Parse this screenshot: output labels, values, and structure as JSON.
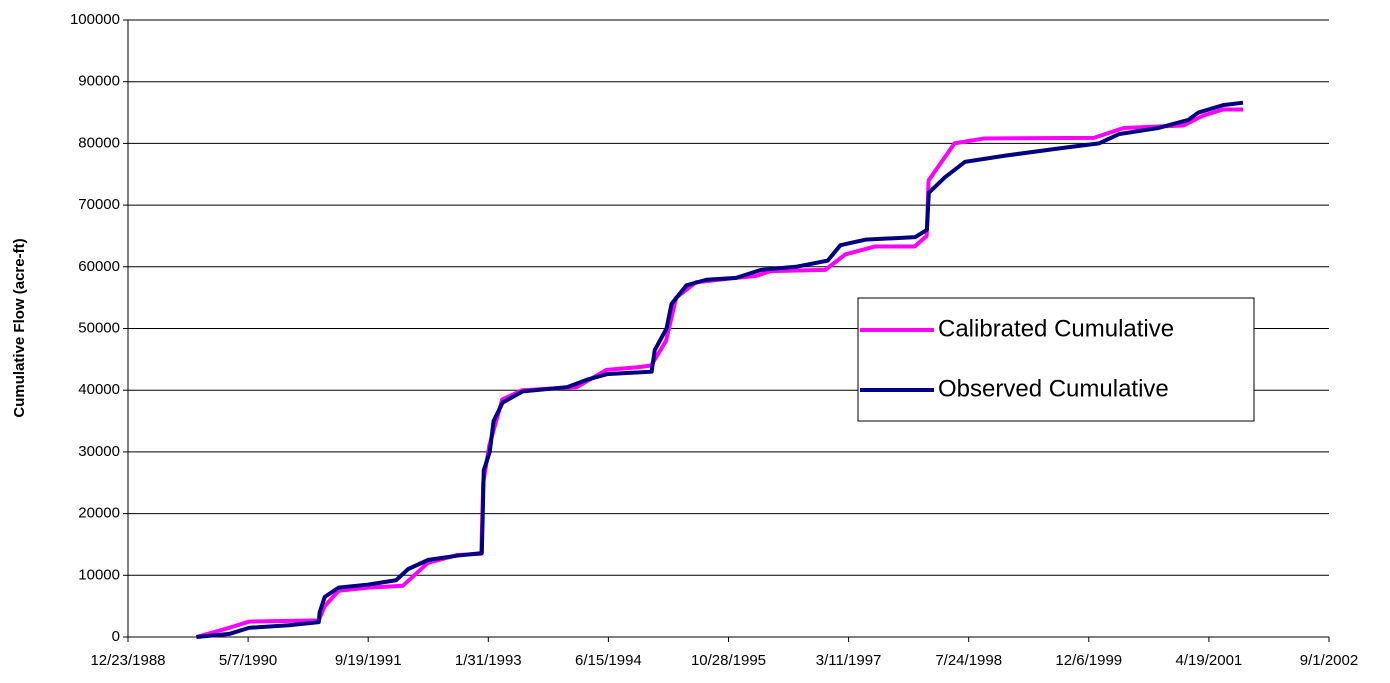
{
  "chart_data": {
    "type": "line",
    "y_label": "Cumulative Flow (acre-ft)",
    "xlim": [
      "12/23/1988",
      "9/1/2002"
    ],
    "xticks": [
      "12/23/1988",
      "5/7/1990",
      "9/19/1991",
      "1/31/1993",
      "6/15/1994",
      "10/28/1995",
      "3/11/1997",
      "7/24/1998",
      "12/6/1999",
      "4/19/2001",
      "9/1/2002"
    ],
    "ylim": [
      0,
      100000
    ],
    "yticks": [
      0,
      10000,
      20000,
      30000,
      40000,
      50000,
      60000,
      70000,
      80000,
      90000,
      100000
    ],
    "grid": true,
    "legend": "right",
    "series": [
      {
        "name": "Calibrated Cumulative",
        "color": "#ff00ff",
        "x": [
          "10/4/1989",
          "2/18/1990",
          "5/12/1990",
          "2/25/1991",
          "3/22/1991",
          "5/19/1991",
          "9/19/1991",
          "2/10/1992",
          "5/24/1992",
          "9/25/1992",
          "1/2/1993",
          "1/10/1993",
          "2/4/1993",
          "3/30/1993",
          "6/21/1993",
          "2/3/1994",
          "6/7/1994",
          "10/10/1994",
          "12/10/1994",
          "2/10/1995",
          "3/24/1995",
          "6/15/1995",
          "11/27/1995",
          "2/18/1996",
          "4/20/1996",
          "12/4/1996",
          "2/25/1997",
          "6/29/1997",
          "12/11/1997",
          "1/30/1998",
          "2/7/1998",
          "5/26/1998",
          "9/27/1998",
          "12/27/1999",
          "4/29/2000",
          "1/3/2001",
          "3/26/2001",
          "6/17/2001",
          "9/8/2001"
        ],
        "values": [
          0,
          1500,
          2500,
          2700,
          5000,
          7500,
          8000,
          8300,
          12000,
          13300,
          13500,
          25000,
          31000,
          38500,
          40000,
          40500,
          43300,
          43700,
          44000,
          48000,
          55000,
          57500,
          58200,
          58500,
          59300,
          59500,
          62000,
          63300,
          63300,
          65000,
          74000,
          80000,
          80800,
          80900,
          82500,
          82900,
          84500,
          85500,
          85500
        ]
      },
      {
        "name": "Observed Cumulative",
        "color": "#000080",
        "x": [
          "10/4/1989",
          "2/18/1990",
          "5/12/1990",
          "10/24/1990",
          "2/25/1991",
          "3/1/1991",
          "3/22/1991",
          "5/19/1991",
          "9/19/1991",
          "1/13/1992",
          "3/3/1992",
          "5/26/1992",
          "9/27/1992",
          "1/4/1993",
          "1/12/1993",
          "2/6/1993",
          "2/22/1993",
          "4/1/1993",
          "6/23/1993",
          "12/26/1993",
          "3/18/1994",
          "6/9/1994",
          "12/12/1994",
          "12/25/1994",
          "2/12/1995",
          "3/5/1995",
          "5/6/1995",
          "7/28/1995",
          "11/29/1995",
          "3/11/1996",
          "8/3/1996",
          "12/14/1996",
          "2/5/1997",
          "5/20/1997",
          "12/13/1997",
          "1/31/1998",
          "2/8/1998",
          "4/16/1998",
          "7/8/1998",
          "12/20/1998",
          "8/25/1999",
          "1/17/2000",
          "4/9/2000",
          "9/21/2000",
          "1/23/2001",
          "3/6/2001",
          "6/17/2001",
          "9/8/2001"
        ],
        "values": [
          0,
          500,
          1500,
          1900,
          2400,
          4000,
          6500,
          8000,
          8500,
          9200,
          11000,
          12500,
          13200,
          13600,
          27000,
          30000,
          35000,
          38000,
          39800,
          40500,
          41700,
          42600,
          43000,
          46500,
          50000,
          54000,
          57000,
          57900,
          58200,
          59500,
          60000,
          61000,
          63500,
          64400,
          64800,
          66000,
          72000,
          74500,
          77000,
          78000,
          79300,
          80000,
          81500,
          82500,
          83800,
          85000,
          86200,
          86600
        ]
      }
    ]
  }
}
